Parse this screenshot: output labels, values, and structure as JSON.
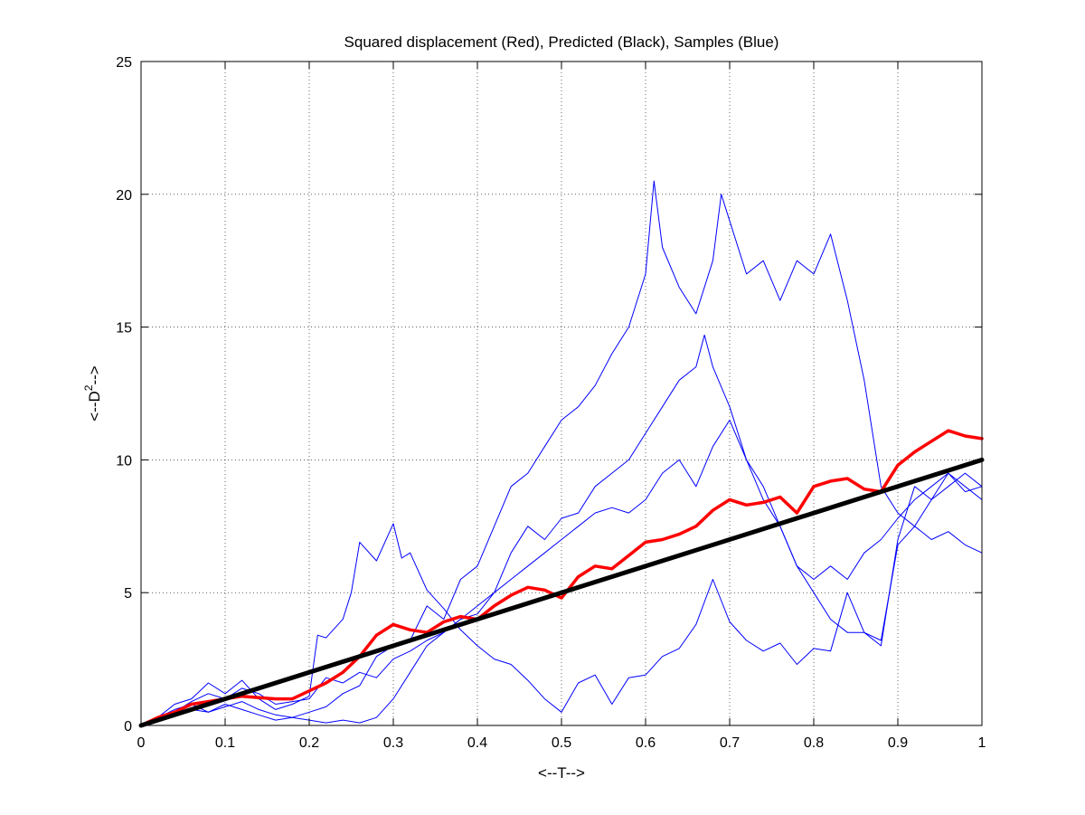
{
  "chart_data": {
    "type": "line",
    "title": "Squared displacement (Red), Predicted (Black), Samples (Blue)",
    "xlabel": "<--T-->",
    "ylabel": {
      "base": "<--D",
      "superscript": "2",
      "tail": "-->"
    },
    "xlim": [
      0,
      1
    ],
    "ylim": [
      0,
      25
    ],
    "xticks": [
      "0",
      "0.1",
      "0.2",
      "0.3",
      "0.4",
      "0.5",
      "0.6",
      "0.7",
      "0.8",
      "0.9",
      "1"
    ],
    "yticks": [
      "0",
      "5",
      "10",
      "15",
      "20",
      "25"
    ],
    "grid": true,
    "colors": {
      "samples": "#0000ff",
      "mean": "#ff0000",
      "predicted": "#000000"
    },
    "series": [
      {
        "role": "sample",
        "color": "#0000ff",
        "x": [
          0,
          0.02,
          0.04,
          0.06,
          0.08,
          0.1,
          0.12,
          0.14,
          0.16,
          0.18,
          0.2,
          0.21,
          0.22,
          0.24,
          0.25,
          0.26,
          0.28,
          0.3,
          0.31,
          0.32,
          0.34,
          0.36,
          0.38,
          0.4,
          0.42,
          0.44,
          0.46,
          0.48,
          0.5,
          0.52,
          0.54,
          0.56,
          0.58,
          0.6,
          0.62,
          0.64,
          0.66,
          0.68,
          0.7,
          0.72,
          0.74,
          0.76,
          0.78,
          0.8,
          0.82,
          0.84,
          0.86,
          0.88,
          0.9,
          0.92,
          0.94,
          0.96,
          0.98,
          1.0
        ],
        "y": [
          0,
          0.3,
          0.8,
          1.0,
          1.6,
          1.2,
          1.7,
          1.0,
          0.6,
          0.8,
          1.1,
          3.4,
          3.3,
          4.0,
          5.0,
          6.9,
          6.2,
          7.6,
          6.3,
          6.5,
          5.1,
          4.4,
          3.6,
          3.0,
          2.5,
          2.3,
          1.7,
          1.0,
          0.5,
          1.6,
          1.9,
          0.8,
          1.8,
          1.9,
          2.6,
          2.9,
          3.8,
          5.5,
          3.9,
          3.2,
          2.8,
          3.1,
          2.3,
          2.9,
          2.8,
          5.0,
          3.5,
          3.2,
          6.8,
          7.5,
          7.0,
          7.3,
          6.8,
          6.5
        ]
      },
      {
        "role": "sample",
        "color": "#0000ff",
        "x": [
          0,
          0.02,
          0.04,
          0.06,
          0.08,
          0.1,
          0.12,
          0.14,
          0.16,
          0.18,
          0.2,
          0.22,
          0.24,
          0.26,
          0.28,
          0.3,
          0.32,
          0.34,
          0.36,
          0.38,
          0.4,
          0.42,
          0.44,
          0.46,
          0.48,
          0.5,
          0.52,
          0.54,
          0.56,
          0.58,
          0.6,
          0.61,
          0.62,
          0.64,
          0.66,
          0.68,
          0.69,
          0.7,
          0.72,
          0.74,
          0.76,
          0.78,
          0.8,
          0.82,
          0.84,
          0.86,
          0.88,
          0.9,
          0.92,
          0.94,
          0.96,
          0.98,
          1.0
        ],
        "y": [
          0,
          0.3,
          0.6,
          0.8,
          0.5,
          0.7,
          0.9,
          0.6,
          0.4,
          0.3,
          0.5,
          0.7,
          1.2,
          1.5,
          2.6,
          3.0,
          3.2,
          4.5,
          4.0,
          5.5,
          6.0,
          7.5,
          9.0,
          9.5,
          10.5,
          11.5,
          12.0,
          12.8,
          14.0,
          15.0,
          17.0,
          20.5,
          18.0,
          16.5,
          15.5,
          17.5,
          20.0,
          19.0,
          17.0,
          17.5,
          16.0,
          17.5,
          17.0,
          18.5,
          16.0,
          13.0,
          9.0,
          8.0,
          7.5,
          8.5,
          9.0,
          9.5,
          9.0
        ]
      },
      {
        "role": "sample",
        "color": "#0000ff",
        "x": [
          0,
          0.02,
          0.04,
          0.06,
          0.08,
          0.1,
          0.12,
          0.14,
          0.16,
          0.18,
          0.2,
          0.22,
          0.24,
          0.26,
          0.28,
          0.3,
          0.32,
          0.34,
          0.36,
          0.38,
          0.4,
          0.42,
          0.44,
          0.46,
          0.48,
          0.5,
          0.52,
          0.54,
          0.56,
          0.58,
          0.6,
          0.62,
          0.64,
          0.66,
          0.67,
          0.68,
          0.7,
          0.72,
          0.74,
          0.76,
          0.78,
          0.8,
          0.82,
          0.84,
          0.86,
          0.88,
          0.9,
          0.92,
          0.94,
          0.96,
          0.98,
          1.0
        ],
        "y": [
          0,
          0.2,
          0.5,
          0.9,
          1.2,
          1.0,
          1.4,
          1.2,
          0.8,
          0.9,
          1.0,
          1.8,
          1.6,
          2.0,
          1.8,
          2.5,
          2.8,
          3.2,
          3.5,
          4.0,
          4.2,
          5.0,
          6.5,
          7.5,
          7.0,
          7.8,
          8.0,
          9.0,
          9.5,
          10.0,
          11.0,
          12.0,
          13.0,
          13.5,
          14.7,
          13.5,
          12.0,
          10.0,
          8.5,
          7.5,
          6.0,
          5.5,
          6.0,
          5.5,
          6.5,
          7.0,
          7.8,
          8.5,
          9.0,
          9.5,
          8.8,
          9.0
        ]
      },
      {
        "role": "sample",
        "color": "#0000ff",
        "x": [
          0,
          0.02,
          0.04,
          0.06,
          0.08,
          0.1,
          0.12,
          0.14,
          0.16,
          0.18,
          0.2,
          0.22,
          0.24,
          0.26,
          0.28,
          0.3,
          0.32,
          0.34,
          0.36,
          0.38,
          0.4,
          0.42,
          0.44,
          0.46,
          0.48,
          0.5,
          0.52,
          0.54,
          0.56,
          0.58,
          0.6,
          0.62,
          0.64,
          0.66,
          0.68,
          0.7,
          0.72,
          0.74,
          0.76,
          0.78,
          0.8,
          0.82,
          0.84,
          0.86,
          0.88,
          0.9,
          0.92,
          0.94,
          0.96,
          0.98,
          1.0
        ],
        "y": [
          0,
          0.2,
          0.4,
          0.6,
          0.5,
          0.8,
          0.6,
          0.4,
          0.2,
          0.3,
          0.2,
          0.1,
          0.2,
          0.1,
          0.3,
          1.0,
          2.0,
          3.0,
          3.5,
          4.0,
          4.5,
          5.0,
          5.5,
          6.0,
          6.5,
          7.0,
          7.5,
          8.0,
          8.2,
          8.0,
          8.5,
          9.5,
          10.0,
          9.0,
          10.5,
          11.5,
          10.0,
          9.0,
          7.5,
          6.0,
          5.0,
          4.0,
          3.5,
          3.5,
          3.0,
          7.0,
          9.0,
          8.5,
          9.5,
          9.0,
          8.5
        ]
      },
      {
        "role": "mean",
        "color": "#ff0000",
        "x": [
          0,
          0.02,
          0.04,
          0.06,
          0.08,
          0.1,
          0.12,
          0.14,
          0.16,
          0.18,
          0.2,
          0.22,
          0.24,
          0.26,
          0.28,
          0.3,
          0.32,
          0.34,
          0.36,
          0.38,
          0.4,
          0.42,
          0.44,
          0.46,
          0.48,
          0.5,
          0.52,
          0.54,
          0.56,
          0.58,
          0.6,
          0.62,
          0.64,
          0.66,
          0.68,
          0.7,
          0.72,
          0.74,
          0.76,
          0.78,
          0.8,
          0.82,
          0.84,
          0.86,
          0.88,
          0.9,
          0.92,
          0.94,
          0.96,
          0.98,
          1.0
        ],
        "y": [
          0,
          0.3,
          0.5,
          0.8,
          0.9,
          1.0,
          1.1,
          1.05,
          1.0,
          1.0,
          1.3,
          1.6,
          2.0,
          2.6,
          3.4,
          3.8,
          3.6,
          3.5,
          3.9,
          4.1,
          4.0,
          4.5,
          4.9,
          5.2,
          5.1,
          4.8,
          5.6,
          6.0,
          5.9,
          6.4,
          6.9,
          7.0,
          7.2,
          7.5,
          8.1,
          8.5,
          8.3,
          8.4,
          8.6,
          8.0,
          9.0,
          9.2,
          9.3,
          8.9,
          8.8,
          9.8,
          10.3,
          10.7,
          11.1,
          10.9,
          10.8
        ]
      },
      {
        "role": "predicted",
        "color": "#000000",
        "x": [
          0,
          1
        ],
        "y": [
          0,
          10
        ]
      }
    ]
  }
}
